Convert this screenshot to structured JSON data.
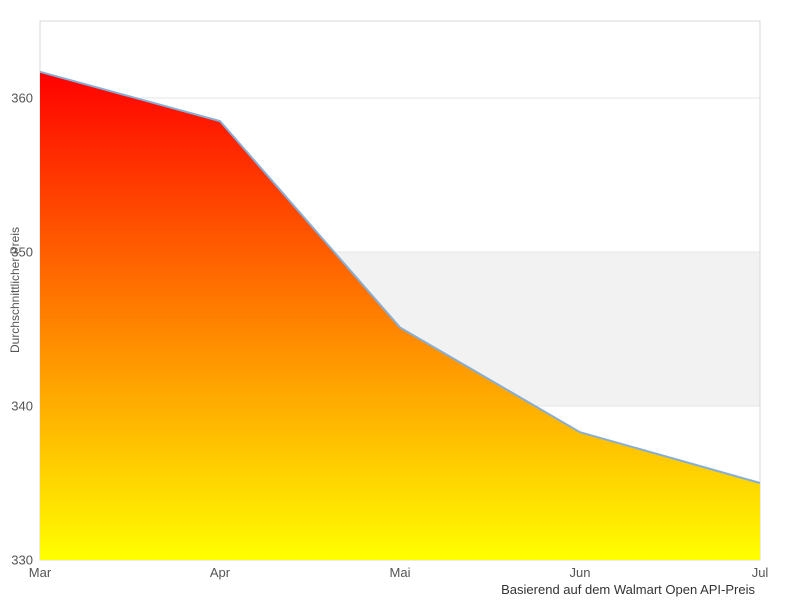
{
  "chart_data": {
    "type": "area",
    "title": "",
    "x": [
      "Mar",
      "Apr",
      "Mai",
      "Jun",
      "Jul"
    ],
    "series": [
      {
        "name": "Durchschnittlicher Preis",
        "values": [
          361.7,
          358.5,
          345.1,
          338.3,
          335.0
        ]
      }
    ],
    "xlabel": "",
    "ylabel": "Durchschnittlicher Preis",
    "ylim": [
      330,
      365
    ],
    "yticks": [
      330,
      340,
      350,
      360
    ],
    "grid": true,
    "legend": false,
    "plot_band": {
      "from": 340,
      "to": 350
    },
    "caption": "Basierend auf dem Walmart Open API-Preis",
    "colors": {
      "line": "#86aed6",
      "fill_top": "#ff0000",
      "fill_bottom": "#ffff00",
      "grid": "#e6e6e6",
      "border": "#d8d8d8",
      "band": "#f2f2f2",
      "tick_text": "#555555",
      "caption_text": "#333333"
    }
  }
}
